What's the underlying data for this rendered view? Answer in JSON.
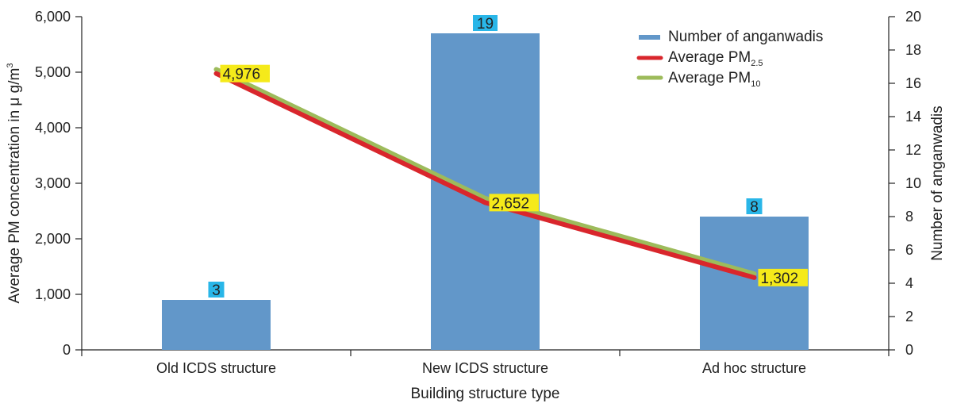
{
  "chart_data": {
    "type": "bar",
    "categories": [
      "Old ICDS structure",
      "New ICDS structure",
      "Ad hoc structure"
    ],
    "xlabel": "Building structure type",
    "ylabel_left": "Average PM concentration in μ g/m",
    "ylabel_left_superscript": "3",
    "ylabel_right": "Number of anganwadis",
    "ylim_left": [
      0,
      6000
    ],
    "yticks_left": [
      "0",
      "1,000",
      "2,000",
      "3,000",
      "4,000",
      "5,000",
      "6,000"
    ],
    "ylim_right": [
      0,
      20
    ],
    "yticks_right": [
      "0",
      "2",
      "4",
      "6",
      "8",
      "10",
      "12",
      "14",
      "16",
      "18",
      "20"
    ],
    "series": [
      {
        "name": "Number of anganwadis",
        "kind": "bar",
        "axis": "right",
        "color": "#6297c9",
        "label_bg": "#29b6e8",
        "values": [
          3,
          19,
          8
        ],
        "labels": [
          "3",
          "19",
          "8"
        ]
      },
      {
        "name": "Average PM",
        "name_sub": "2.5",
        "kind": "line",
        "axis": "left",
        "color": "#d9262c",
        "values": [
          4976,
          2652,
          1302
        ]
      },
      {
        "name": "Average PM",
        "name_sub": "10",
        "kind": "line",
        "axis": "left",
        "color": "#9dbb5b",
        "values": [
          5050,
          2730,
          1370
        ]
      }
    ],
    "line_labels": [
      "4,976",
      "2,652",
      "1,302"
    ],
    "line_label_bg": "#f5ea1a",
    "legend": "top-right",
    "grid": false
  }
}
